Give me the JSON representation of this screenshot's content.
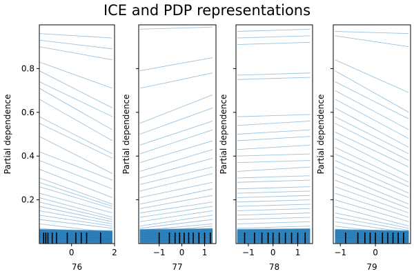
{
  "title": "ICE and PDP representations",
  "line_color": "#1f77b4",
  "chart_data": {
    "type": "line",
    "title": "ICE and PDP representations",
    "ylabel": "Partial dependence",
    "ylim": [
      0.0,
      1.0
    ],
    "yticks": [
      0.2,
      0.4,
      0.6,
      0.8
    ],
    "grid": false,
    "panels": [
      {
        "xlabel": "76",
        "xlim": [
          -1.5,
          2.0
        ],
        "xticks": [
          0,
          2
        ],
        "x": [
          -1.5,
          1.9
        ],
        "rug": [
          -1.3,
          -1.2,
          -1.1,
          -0.9,
          -0.7,
          -0.2,
          0.2,
          0.45,
          0.7,
          1.35
        ],
        "series": [
          {
            "values": [
              0.96,
              0.94
            ]
          },
          {
            "values": [
              0.93,
              0.89
            ]
          },
          {
            "values": [
              0.9,
              0.84
            ]
          },
          {
            "values": [
              0.83,
              0.71
            ]
          },
          {
            "values": [
              0.79,
              0.62
            ]
          },
          {
            "values": [
              0.74,
              0.58
            ]
          },
          {
            "values": [
              0.71,
              0.52
            ]
          },
          {
            "values": [
              0.66,
              0.47
            ]
          },
          {
            "values": [
              0.58,
              0.41
            ]
          },
          {
            "values": [
              0.55,
              0.39
            ]
          },
          {
            "values": [
              0.49,
              0.32
            ]
          },
          {
            "values": [
              0.42,
              0.29
            ]
          },
          {
            "values": [
              0.38,
              0.25
            ]
          },
          {
            "values": [
              0.34,
              0.21
            ]
          },
          {
            "values": [
              0.3,
              0.18
            ]
          },
          {
            "values": [
              0.28,
              0.17
            ]
          },
          {
            "values": [
              0.26,
              0.16
            ]
          },
          {
            "values": [
              0.23,
              0.14
            ]
          },
          {
            "values": [
              0.21,
              0.12
            ]
          },
          {
            "values": [
              0.19,
              0.11
            ]
          },
          {
            "values": [
              0.17,
              0.1
            ]
          },
          {
            "values": [
              0.15,
              0.09
            ]
          },
          {
            "values": [
              0.13,
              0.08
            ]
          },
          {
            "values": [
              0.11,
              0.07
            ]
          },
          {
            "values": [
              0.09,
              0.05
            ]
          },
          {
            "values": [
              0.07,
              0.04
            ]
          },
          {
            "values": [
              0.06,
              0.03
            ]
          },
          {
            "values": [
              0.05,
              0.02
            ]
          },
          {
            "values": [
              0.04,
              0.02
            ]
          },
          {
            "values": [
              0.03,
              0.01
            ]
          }
        ]
      },
      {
        "xlabel": "77",
        "xlim": [
          -1.9,
          1.5
        ],
        "xticks": [
          -1,
          0,
          1
        ],
        "x": [
          -1.85,
          1.35
        ],
        "rug": [
          -1.0,
          -0.55,
          -0.3,
          -0.1,
          0.1,
          0.3,
          0.5,
          0.75,
          1.0,
          1.25
        ],
        "series": [
          {
            "values": [
              0.98,
              0.99
            ]
          },
          {
            "values": [
              0.79,
              0.85
            ]
          },
          {
            "values": [
              0.71,
              0.78
            ]
          },
          {
            "values": [
              0.55,
              0.68
            ]
          },
          {
            "values": [
              0.5,
              0.62
            ]
          },
          {
            "values": [
              0.45,
              0.56
            ]
          },
          {
            "values": [
              0.41,
              0.52
            ]
          },
          {
            "values": [
              0.37,
              0.47
            ]
          },
          {
            "values": [
              0.33,
              0.43
            ]
          },
          {
            "values": [
              0.3,
              0.39
            ]
          },
          {
            "values": [
              0.27,
              0.35
            ]
          },
          {
            "values": [
              0.24,
              0.32
            ]
          },
          {
            "values": [
              0.21,
              0.28
            ]
          },
          {
            "values": [
              0.18,
              0.25
            ]
          },
          {
            "values": [
              0.16,
              0.22
            ]
          },
          {
            "values": [
              0.14,
              0.19
            ]
          },
          {
            "values": [
              0.12,
              0.17
            ]
          },
          {
            "values": [
              0.1,
              0.15
            ]
          },
          {
            "values": [
              0.08,
              0.13
            ]
          },
          {
            "values": [
              0.07,
              0.11
            ]
          },
          {
            "values": [
              0.06,
              0.09
            ]
          },
          {
            "values": [
              0.05,
              0.08
            ]
          },
          {
            "values": [
              0.04,
              0.07
            ]
          },
          {
            "values": [
              0.03,
              0.06
            ]
          },
          {
            "values": [
              0.02,
              0.05
            ]
          },
          {
            "values": [
              0.02,
              0.04
            ]
          },
          {
            "values": [
              0.01,
              0.03
            ]
          }
        ]
      },
      {
        "xlabel": "78",
        "xlim": [
          -1.5,
          1.6
        ],
        "xticks": [
          -1,
          0,
          1
        ],
        "x": [
          -1.45,
          1.5
        ],
        "rug": [
          -1.15,
          -0.75,
          -0.45,
          -0.2,
          0.0,
          0.25,
          0.5,
          0.75,
          1.0,
          1.3
        ],
        "series": [
          {
            "values": [
              0.97,
              0.98
            ]
          },
          {
            "values": [
              0.94,
              0.95
            ]
          },
          {
            "values": [
              0.91,
              0.92
            ]
          },
          {
            "values": [
              0.77,
              0.78
            ]
          },
          {
            "values": [
              0.75,
              0.76
            ]
          },
          {
            "values": [
              0.58,
              0.59
            ]
          },
          {
            "values": [
              0.54,
              0.56
            ]
          },
          {
            "values": [
              0.5,
              0.52
            ]
          },
          {
            "values": [
              0.47,
              0.49
            ]
          },
          {
            "values": [
              0.43,
              0.45
            ]
          },
          {
            "values": [
              0.4,
              0.41
            ]
          },
          {
            "values": [
              0.37,
              0.38
            ]
          },
          {
            "values": [
              0.33,
              0.35
            ]
          },
          {
            "values": [
              0.3,
              0.31
            ]
          },
          {
            "values": [
              0.28,
              0.29
            ]
          },
          {
            "values": [
              0.25,
              0.26
            ]
          },
          {
            "values": [
              0.23,
              0.24
            ]
          },
          {
            "values": [
              0.21,
              0.22
            ]
          },
          {
            "values": [
              0.19,
              0.2
            ]
          },
          {
            "values": [
              0.17,
              0.18
            ]
          },
          {
            "values": [
              0.15,
              0.16
            ]
          },
          {
            "values": [
              0.13,
              0.14
            ]
          },
          {
            "values": [
              0.11,
              0.12
            ]
          },
          {
            "values": [
              0.09,
              0.1
            ]
          },
          {
            "values": [
              0.07,
              0.08
            ]
          },
          {
            "values": [
              0.06,
              0.06
            ]
          },
          {
            "values": [
              0.05,
              0.05
            ]
          },
          {
            "values": [
              0.04,
              0.04
            ]
          },
          {
            "values": [
              0.03,
              0.03
            ]
          },
          {
            "values": [
              0.02,
              0.02
            ]
          }
        ]
      },
      {
        "xlabel": "79",
        "xlim": [
          -1.2,
          1.0
        ],
        "xticks": [
          -1,
          0
        ],
        "x": [
          -1.15,
          0.95
        ],
        "rug": [
          -0.85,
          -0.5,
          -0.3,
          -0.15,
          0.0,
          0.2,
          0.35,
          0.5,
          0.65,
          0.8
        ],
        "series": [
          {
            "values": [
              0.97,
              0.96
            ]
          },
          {
            "values": [
              0.95,
              0.9
            ]
          },
          {
            "values": [
              0.84,
              0.69
            ]
          },
          {
            "values": [
              0.79,
              0.6
            ]
          },
          {
            "values": [
              0.74,
              0.57
            ]
          },
          {
            "values": [
              0.7,
              0.52
            ]
          },
          {
            "values": [
              0.66,
              0.48
            ]
          },
          {
            "values": [
              0.62,
              0.44
            ]
          },
          {
            "values": [
              0.58,
              0.41
            ]
          },
          {
            "values": [
              0.55,
              0.38
            ]
          },
          {
            "values": [
              0.51,
              0.35
            ]
          },
          {
            "values": [
              0.48,
              0.31
            ]
          },
          {
            "values": [
              0.44,
              0.28
            ]
          },
          {
            "values": [
              0.41,
              0.26
            ]
          },
          {
            "values": [
              0.38,
              0.23
            ]
          },
          {
            "values": [
              0.35,
              0.21
            ]
          },
          {
            "values": [
              0.32,
              0.18
            ]
          },
          {
            "values": [
              0.29,
              0.16
            ]
          },
          {
            "values": [
              0.26,
              0.14
            ]
          },
          {
            "values": [
              0.23,
              0.12
            ]
          },
          {
            "values": [
              0.2,
              0.1
            ]
          },
          {
            "values": [
              0.17,
              0.08
            ]
          },
          {
            "values": [
              0.14,
              0.07
            ]
          },
          {
            "values": [
              0.12,
              0.06
            ]
          },
          {
            "values": [
              0.1,
              0.05
            ]
          },
          {
            "values": [
              0.08,
              0.04
            ]
          },
          {
            "values": [
              0.06,
              0.03
            ]
          },
          {
            "values": [
              0.05,
              0.02
            ]
          },
          {
            "values": [
              0.04,
              0.02
            ]
          },
          {
            "values": [
              0.03,
              0.01
            ]
          }
        ]
      }
    ]
  }
}
